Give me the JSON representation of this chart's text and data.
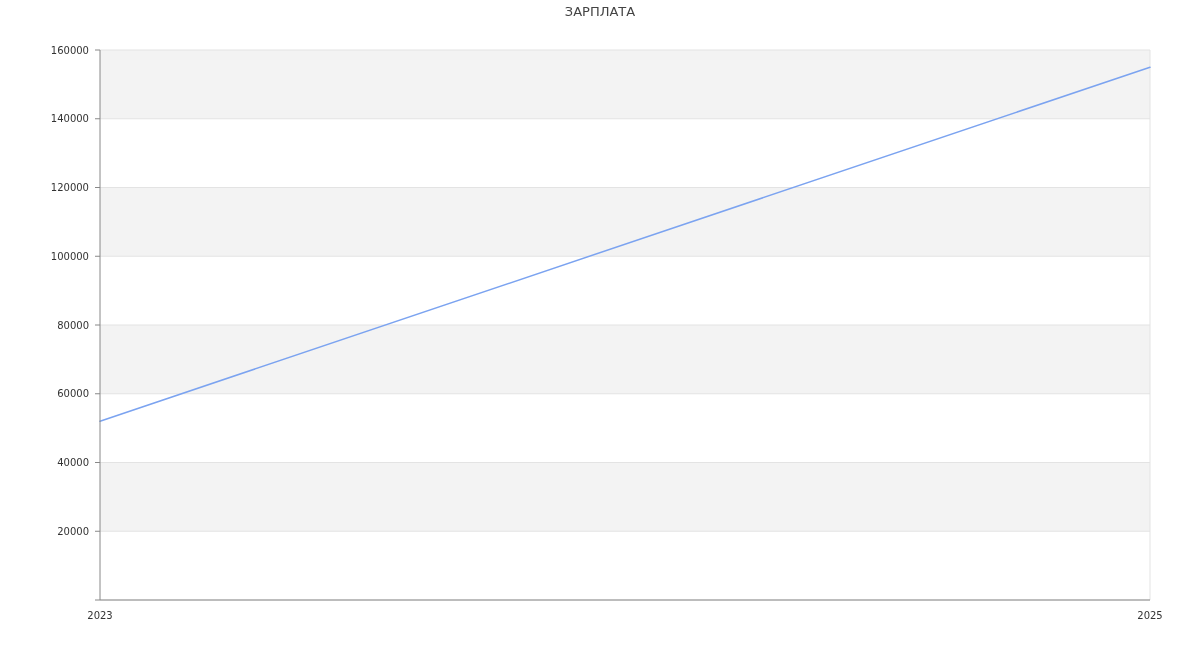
{
  "chart_data": {
    "type": "line",
    "title": "ЗАРПЛАТА",
    "x": [
      2023,
      2025
    ],
    "xlim": [
      2023,
      2025
    ],
    "xticks": [
      2023,
      2025
    ],
    "ylim": [
      0,
      160000
    ],
    "yticks": [
      {
        "value": 0,
        "label": null
      },
      20000,
      40000,
      60000,
      80000,
      100000,
      120000,
      140000,
      160000
    ],
    "grid": "y",
    "marker": "none",
    "line_style": "solid",
    "series": [
      {
        "color": "#7ba3f0",
        "values": [
          52000,
          155000
        ]
      }
    ]
  }
}
